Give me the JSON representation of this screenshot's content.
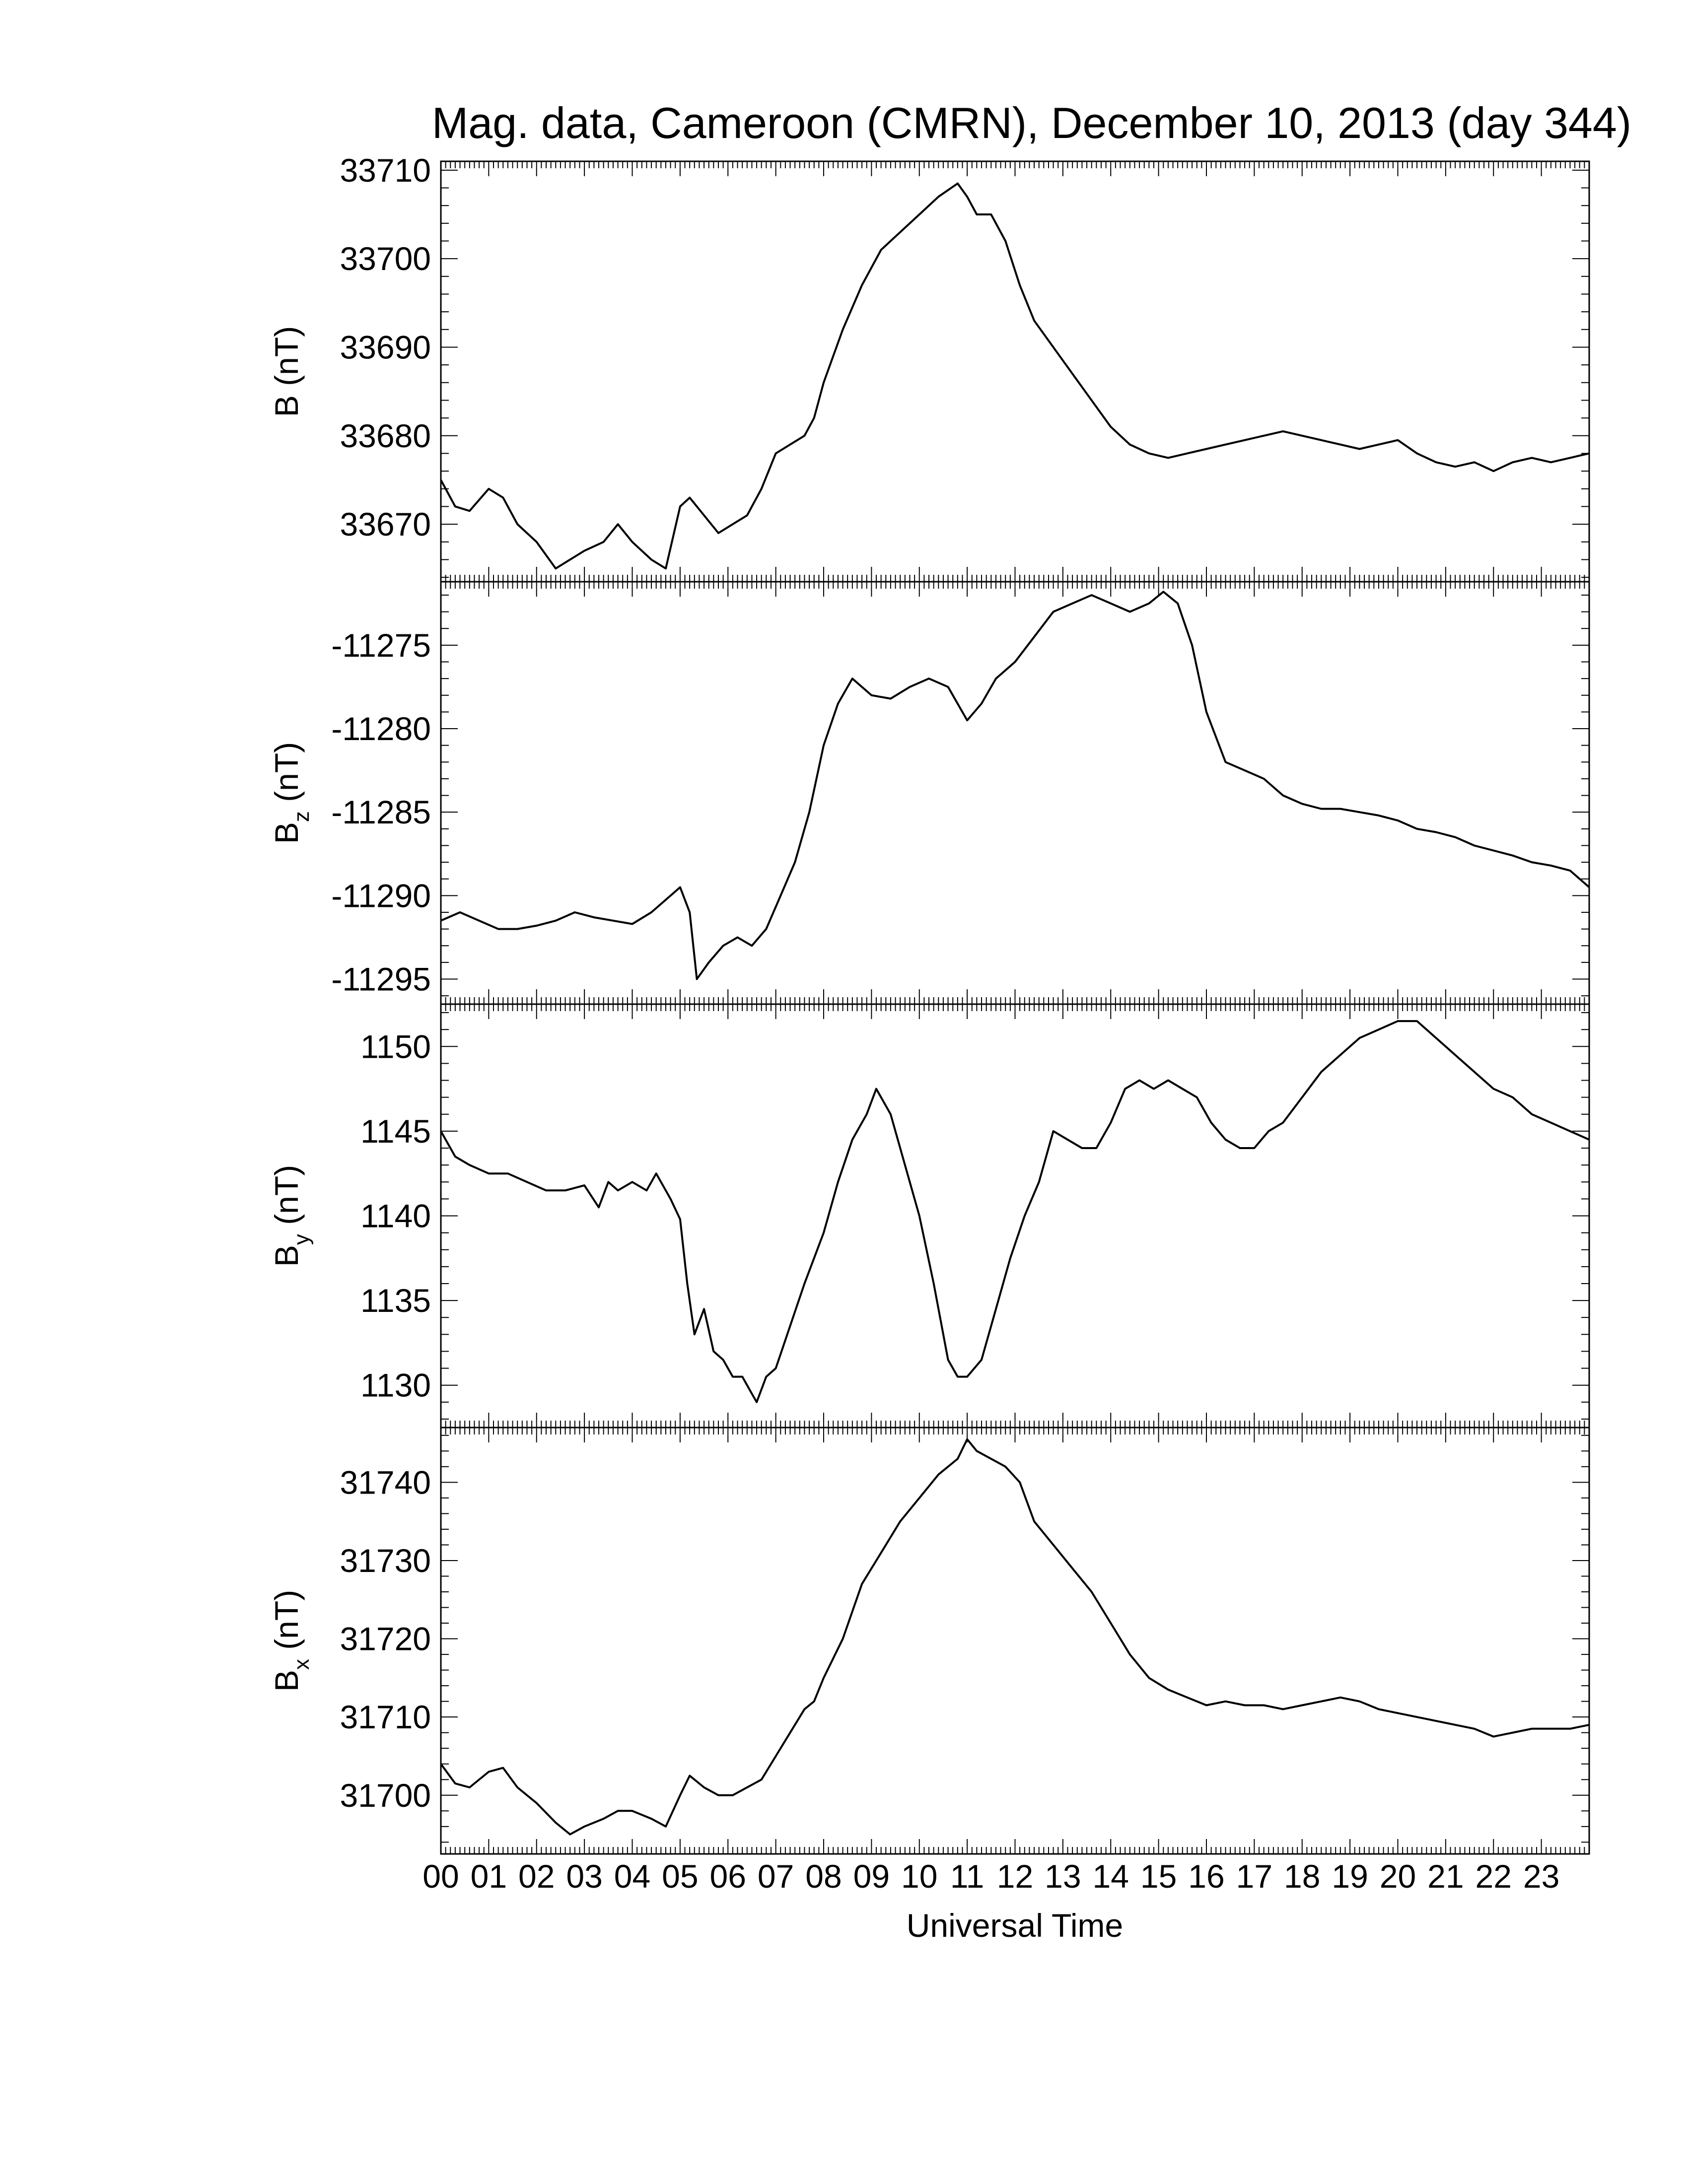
{
  "chart_data": {
    "title": "Mag. data, Cameroon (CMRN), December 10, 2013 (day 344)",
    "xlabel": "Universal Time",
    "x_ticks": [
      "00",
      "01",
      "02",
      "03",
      "04",
      "05",
      "06",
      "07",
      "08",
      "09",
      "10",
      "11",
      "12",
      "13",
      "14",
      "15",
      "16",
      "17",
      "18",
      "19",
      "20",
      "21",
      "22",
      "23"
    ],
    "xlim": [
      0,
      24
    ],
    "panels": [
      {
        "type": "line",
        "ylabel_main": "B",
        "ylabel_sub": "",
        "ylabel_unit": "(nT)",
        "ylim": [
          33663.5,
          33711
        ],
        "yticks": [
          33670,
          33680,
          33690,
          33700,
          33710
        ],
        "x": [
          0,
          0.3,
          0.6,
          1.0,
          1.3,
          1.6,
          2.0,
          2.4,
          2.7,
          3.0,
          3.4,
          3.7,
          4.0,
          4.4,
          4.7,
          5.0,
          5.2,
          5.5,
          5.8,
          6.1,
          6.4,
          6.7,
          7.0,
          7.3,
          7.6,
          7.8,
          8.0,
          8.4,
          8.8,
          9.2,
          9.6,
          10.0,
          10.4,
          10.8,
          11.0,
          11.2,
          11.5,
          11.8,
          12.1,
          12.4,
          12.8,
          13.2,
          13.6,
          14.0,
          14.4,
          14.8,
          15.2,
          15.6,
          16.0,
          16.4,
          16.8,
          17.2,
          17.6,
          18.0,
          18.4,
          18.8,
          19.2,
          19.6,
          20.0,
          20.4,
          20.8,
          21.2,
          21.6,
          22.0,
          22.4,
          22.8,
          23.2,
          23.6,
          24.0
        ],
        "values": [
          33675,
          33672,
          33671.5,
          33674,
          33673,
          33670,
          33668,
          33665,
          33666,
          33667,
          33668,
          33670,
          33668,
          33666,
          33665,
          33672,
          33673,
          33671,
          33669,
          33670,
          33671,
          33674,
          33678,
          33679,
          33680,
          33682,
          33686,
          33692,
          33697,
          33701,
          33703,
          33705,
          33707,
          33708.5,
          33707,
          33705,
          33705,
          33702,
          33697,
          33693,
          33690,
          33687,
          33684,
          33681,
          33679,
          33678,
          33677.5,
          33678,
          33678.5,
          33679,
          33679.5,
          33680,
          33680.5,
          33680,
          33679.5,
          33679,
          33678.5,
          33679,
          33679.5,
          33678,
          33677,
          33676.5,
          33677,
          33676,
          33677,
          33677.5,
          33677,
          33677.5,
          33678
        ]
      },
      {
        "type": "line",
        "ylabel_main": "B",
        "ylabel_sub": "z",
        "ylabel_unit": "(nT)",
        "ylim": [
          -11296.5,
          -11271.2
        ],
        "yticks": [
          -11275,
          -11280,
          -11285,
          -11290,
          -11295
        ],
        "x": [
          0,
          0.4,
          0.8,
          1.2,
          1.6,
          2.0,
          2.4,
          2.8,
          3.2,
          3.6,
          4.0,
          4.4,
          4.8,
          5.0,
          5.2,
          5.35,
          5.6,
          5.9,
          6.2,
          6.5,
          6.8,
          7.1,
          7.4,
          7.7,
          8.0,
          8.3,
          8.6,
          9.0,
          9.4,
          9.8,
          10.2,
          10.6,
          11.0,
          11.3,
          11.6,
          12.0,
          12.4,
          12.8,
          13.2,
          13.6,
          14.0,
          14.4,
          14.8,
          15.1,
          15.4,
          15.7,
          16.0,
          16.4,
          16.8,
          17.2,
          17.6,
          18.0,
          18.4,
          18.8,
          19.2,
          19.6,
          20.0,
          20.4,
          20.8,
          21.2,
          21.6,
          22.0,
          22.4,
          22.8,
          23.2,
          23.6,
          24.0
        ],
        "values": [
          -11291.5,
          -11291,
          -11291.5,
          -11292,
          -11292,
          -11291.8,
          -11291.5,
          -11291,
          -11291.3,
          -11291.5,
          -11291.7,
          -11291,
          -11290,
          -11289.5,
          -11291,
          -11295,
          -11294,
          -11293,
          -11292.5,
          -11293,
          -11292,
          -11290,
          -11288,
          -11285,
          -11281,
          -11278.5,
          -11277,
          -11278,
          -11278.2,
          -11277.5,
          -11277,
          -11277.5,
          -11279.5,
          -11278.5,
          -11277,
          -11276,
          -11274.5,
          -11273,
          -11272.5,
          -11272,
          -11272.5,
          -11273,
          -11272.5,
          -11271.8,
          -11272.5,
          -11275,
          -11279,
          -11282,
          -11282.5,
          -11283,
          -11284,
          -11284.5,
          -11284.8,
          -11284.8,
          -11285,
          -11285.2,
          -11285.5,
          -11286,
          -11286.2,
          -11286.5,
          -11287,
          -11287.3,
          -11287.6,
          -11288,
          -11288.2,
          -11288.5,
          -11289.5
        ]
      },
      {
        "type": "line",
        "ylabel_main": "B",
        "ylabel_sub": "y",
        "ylabel_unit": "(nT)",
        "ylim": [
          1127.5,
          1152.5
        ],
        "yticks": [
          1130,
          1135,
          1140,
          1145,
          1150
        ],
        "x": [
          0,
          0.3,
          0.6,
          1.0,
          1.4,
          1.8,
          2.2,
          2.6,
          3.0,
          3.3,
          3.5,
          3.7,
          4.0,
          4.3,
          4.5,
          4.8,
          5.0,
          5.15,
          5.3,
          5.5,
          5.7,
          5.9,
          6.1,
          6.3,
          6.5,
          6.6,
          6.8,
          7.0,
          7.3,
          7.6,
          8.0,
          8.3,
          8.6,
          8.9,
          9.1,
          9.4,
          9.7,
          10.0,
          10.3,
          10.6,
          10.8,
          11.0,
          11.3,
          11.6,
          11.9,
          12.2,
          12.5,
          12.8,
          13.1,
          13.4,
          13.7,
          14.0,
          14.3,
          14.6,
          14.9,
          15.2,
          15.5,
          15.8,
          16.1,
          16.4,
          16.7,
          17.0,
          17.3,
          17.6,
          18.0,
          18.4,
          18.8,
          19.2,
          19.6,
          20.0,
          20.4,
          20.8,
          21.2,
          21.6,
          22.0,
          22.4,
          22.8,
          23.2,
          23.6,
          24.0
        ],
        "values": [
          1145,
          1143.5,
          1143,
          1142.5,
          1142.5,
          1142,
          1141.5,
          1141.5,
          1141.8,
          1140.5,
          1142,
          1141.5,
          1142,
          1141.5,
          1142.5,
          1141,
          1139.8,
          1136,
          1133,
          1134.5,
          1132,
          1131.5,
          1130.5,
          1130.5,
          1129.5,
          1129,
          1130.5,
          1131,
          1133.5,
          1136,
          1139,
          1142,
          1144.5,
          1146,
          1147.5,
          1146,
          1143,
          1140,
          1136,
          1131.5,
          1130.5,
          1130.5,
          1131.5,
          1134.5,
          1137.5,
          1140,
          1142,
          1145,
          1144.5,
          1144,
          1144,
          1145.5,
          1147.5,
          1148,
          1147.5,
          1148,
          1147.5,
          1147,
          1145.5,
          1144.5,
          1144,
          1144,
          1145,
          1145.5,
          1147,
          1148.5,
          1149.5,
          1150.5,
          1151,
          1151.5,
          1151.5,
          1150.5,
          1149.5,
          1148.5,
          1147.5,
          1147,
          1146,
          1145.5,
          1145,
          1144.5
        ]
      },
      {
        "type": "line",
        "ylabel_main": "B",
        "ylabel_sub": "x",
        "ylabel_unit": "(nT)",
        "ylim": [
          31692.5,
          31747
        ],
        "yticks": [
          31700,
          31710,
          31720,
          31730,
          31740
        ],
        "x": [
          0,
          0.3,
          0.6,
          1.0,
          1.3,
          1.6,
          2.0,
          2.4,
          2.7,
          3.0,
          3.4,
          3.7,
          4.0,
          4.4,
          4.7,
          5.0,
          5.2,
          5.5,
          5.8,
          6.1,
          6.4,
          6.7,
          7.0,
          7.3,
          7.6,
          7.8,
          8.0,
          8.4,
          8.8,
          9.2,
          9.6,
          10.0,
          10.4,
          10.8,
          11.0,
          11.2,
          11.5,
          11.8,
          12.1,
          12.4,
          12.8,
          13.2,
          13.6,
          14.0,
          14.4,
          14.8,
          15.2,
          15.6,
          16.0,
          16.4,
          16.8,
          17.2,
          17.6,
          18.0,
          18.4,
          18.8,
          19.2,
          19.6,
          20.0,
          20.4,
          20.8,
          21.2,
          21.6,
          22.0,
          22.4,
          22.8,
          23.2,
          23.6,
          24.0
        ],
        "values": [
          31704,
          31701.5,
          31701,
          31703,
          31703.5,
          31701,
          31699,
          31696.5,
          31695,
          31696,
          31697,
          31698,
          31698,
          31697,
          31696,
          31700,
          31702.5,
          31701,
          31700,
          31700,
          31701,
          31702,
          31705,
          31708,
          31711,
          31712,
          31715,
          31720,
          31727,
          31731,
          31735,
          31738,
          31741,
          31743,
          31745.5,
          31744,
          31743,
          31742,
          31740,
          31735,
          31732,
          31729,
          31726,
          31722,
          31718,
          31715,
          31713.5,
          31712.5,
          31711.5,
          31712,
          31711.5,
          31711.5,
          31711,
          31711.5,
          31712,
          31712.5,
          31712,
          31711,
          31710.5,
          31710,
          31709.5,
          31709,
          31708.5,
          31707.5,
          31708,
          31708.5,
          31708.5,
          31708.5,
          31709
        ]
      }
    ]
  }
}
